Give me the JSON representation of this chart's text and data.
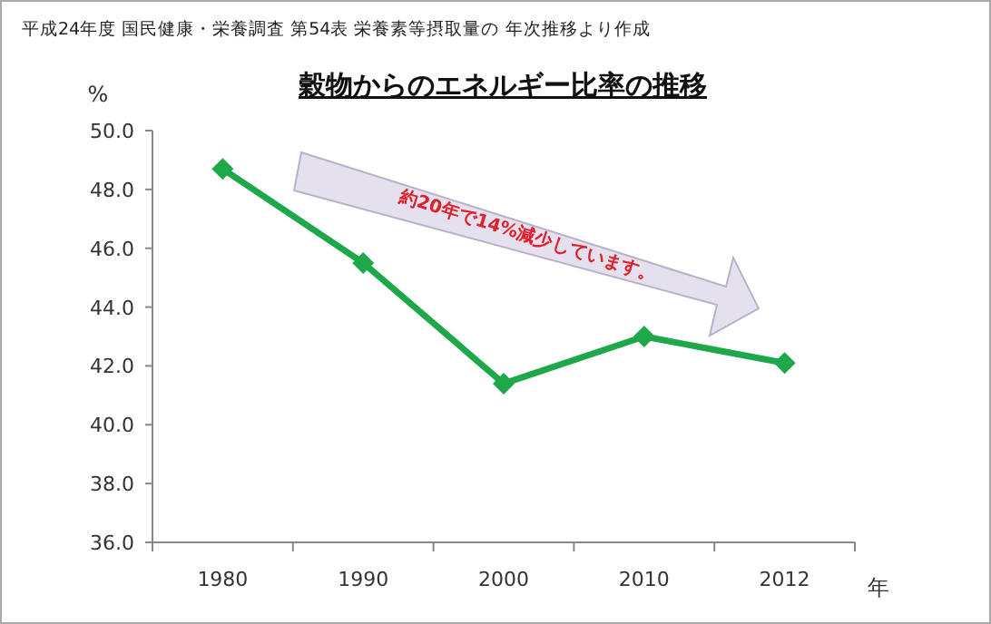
{
  "chart_data": {
    "type": "line",
    "title": "穀物からのエネルギー比率の推移",
    "ylabel": "%",
    "xlabel": "年",
    "annotations": [
      "平成24年度 国民健康・栄養調査 第54表 栄養素等摂取量の 年次推移より作成",
      "約20年で14%減少しています。"
    ],
    "categories": [
      "1980",
      "1990",
      "2000",
      "2010",
      "2012"
    ],
    "series": [
      {
        "color": "#1fa84a",
        "values": [
          48.7,
          45.5,
          41.4,
          43.0,
          42.1
        ]
      }
    ],
    "ylim": [
      36,
      50
    ],
    "yticks": [
      {
        "value": 36,
        "label": "36.0"
      },
      {
        "value": 38,
        "label": "38.0"
      },
      {
        "value": 40,
        "label": "40.0"
      },
      {
        "value": 42,
        "label": "42.0"
      },
      {
        "value": 44,
        "label": "44.0"
      },
      {
        "value": 46,
        "label": "46.0"
      },
      {
        "value": 48,
        "label": "48.0"
      },
      {
        "value": 50,
        "label": "50.0"
      }
    ],
    "grid": false,
    "marker": "diamond",
    "line_style": "solid"
  }
}
